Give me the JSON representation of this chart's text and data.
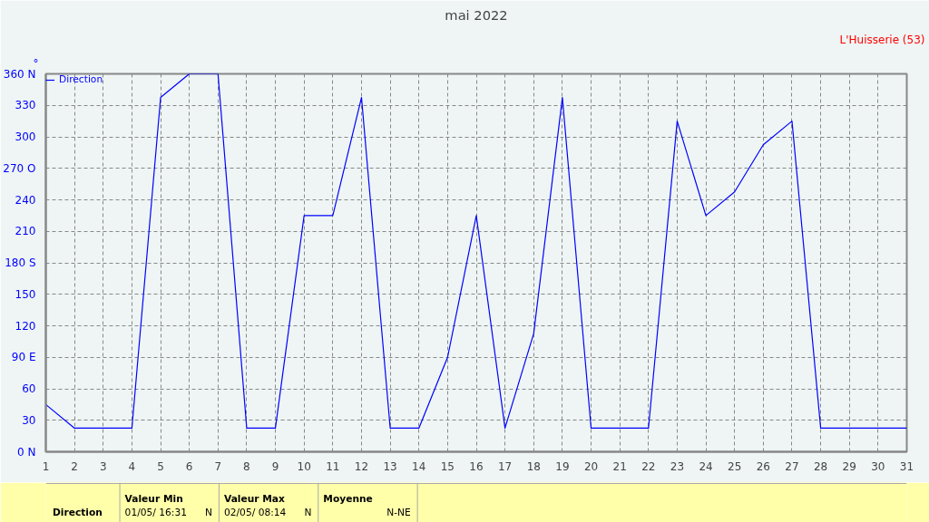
{
  "chart_data": {
    "type": "line",
    "title": "mai 2022",
    "subtitle": "L'Huisserie (53)",
    "ylabel": "°",
    "x": [
      1,
      2,
      3,
      4,
      5,
      6,
      7,
      8,
      9,
      10,
      11,
      12,
      13,
      14,
      15,
      16,
      17,
      18,
      19,
      20,
      21,
      22,
      23,
      24,
      25,
      26,
      27,
      28,
      29,
      30,
      31
    ],
    "series": [
      {
        "name": "Direction",
        "color": "#0000ff",
        "values": [
          45,
          22.5,
          22.5,
          22.5,
          337.5,
          360,
          360,
          22.5,
          22.5,
          225,
          225,
          337.5,
          22.5,
          22.5,
          90,
          225,
          22.5,
          112.5,
          337.5,
          22.5,
          22.5,
          22.5,
          315,
          225,
          247.5,
          292.5,
          315,
          22.5,
          22.5,
          22.5,
          22.5
        ]
      }
    ],
    "xlim": [
      1,
      31
    ],
    "xticks": [
      1,
      2,
      3,
      4,
      5,
      6,
      7,
      8,
      9,
      10,
      11,
      12,
      13,
      14,
      15,
      16,
      17,
      18,
      19,
      20,
      21,
      22,
      23,
      24,
      25,
      26,
      27,
      28,
      29,
      30,
      31
    ],
    "ylim": [
      0,
      360
    ],
    "yticks": [
      {
        "value": 0,
        "label": "0 N"
      },
      30,
      60,
      {
        "value": 90,
        "label": "90 E"
      },
      120,
      150,
      {
        "value": 180,
        "label": "180 S"
      },
      210,
      240,
      {
        "value": 270,
        "label": "270 O"
      },
      300,
      330,
      {
        "value": 360,
        "label": "360 N"
      }
    ],
    "grid": true,
    "legend": "top left",
    "marker": "none",
    "line_style": "solid",
    "annotations": [
      "Direction",
      "Valeur Min",
      "01/05/ 16:31",
      "N",
      "Valeur Max",
      "02/05/ 08:14",
      "N",
      "Moyenne",
      "N-NE"
    ]
  }
}
